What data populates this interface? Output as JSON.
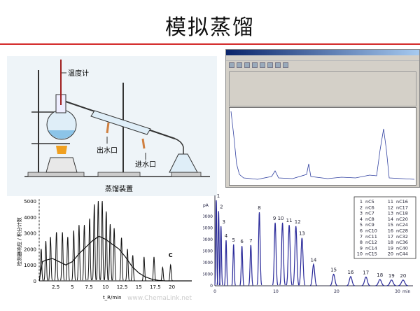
{
  "title": "模拟蒸馏",
  "apparatus": {
    "thermometer": "温度计",
    "water_out": "出水口",
    "water_in": "进水口",
    "caption": "蒸馏装置"
  },
  "watermark": "www.ChemaLink.net",
  "colors": {
    "rule": "#d42a2a",
    "peak_blue": "#2a2a9a",
    "trace": "#111111"
  },
  "chart_data": [
    {
      "type": "line",
      "ylabel": "检测器响应 / 积分计数",
      "xlabel": "t_R/min",
      "xticks": [
        "2.5",
        "5",
        "7.5",
        "10",
        "12.5",
        "15",
        "17.5",
        "20"
      ],
      "yticks": [
        "0",
        "1000",
        "2000",
        "3000",
        "4000",
        "5000"
      ],
      "xlim": [
        0,
        23
      ],
      "ylim": [
        0,
        5000
      ],
      "annotation": "C",
      "peaks": {
        "t": [
          0.3,
          1.0,
          1.7,
          2.6,
          3.5,
          4.3,
          5.2,
          6.0,
          6.8,
          7.6,
          8.3,
          8.9,
          9.5,
          10.1,
          10.7,
          11.3,
          12.4,
          13.3,
          14.1,
          15.8,
          17.3,
          18.6,
          19.8
        ],
        "y": [
          2000,
          2500,
          2750,
          3050,
          3050,
          2750,
          3150,
          3500,
          3500,
          3900,
          4800,
          5000,
          5000,
          4350,
          3550,
          3300,
          2700,
          2000,
          1600,
          1500,
          1500,
          850,
          1000
        ]
      },
      "envelope": {
        "t": [
          0,
          0.5,
          1,
          2,
          3,
          4,
          5,
          6,
          7,
          8,
          9,
          10,
          11,
          12,
          13,
          14,
          15,
          16,
          17,
          18,
          19,
          20,
          23
        ],
        "y": [
          0,
          1200,
          1300,
          1400,
          1200,
          1000,
          1200,
          1700,
          2100,
          2500,
          2800,
          2600,
          2300,
          2000,
          1500,
          900,
          500,
          250,
          100,
          30,
          0,
          0,
          0
        ]
      }
    },
    {
      "type": "line",
      "ylabel": "pA",
      "xlabel": "min",
      "xticks": [
        "0",
        "10",
        "20",
        "30"
      ],
      "yticks": [
        "0",
        "5000",
        "10000",
        "15000",
        "20000",
        "25000",
        "30000"
      ],
      "xlim": [
        0,
        33
      ],
      "ylim": [
        0,
        37000
      ],
      "peaks": [
        {
          "n": "1",
          "t": 0.23,
          "y": 37000
        },
        {
          "n": "2",
          "t": 0.61,
          "y": 32300
        },
        {
          "n": "3",
          "t": 1.0,
          "y": 25800
        },
        {
          "n": "4",
          "t": 1.84,
          "y": 19700
        },
        {
          "n": "5",
          "t": 3.07,
          "y": 17900
        },
        {
          "n": "6",
          "t": 4.44,
          "y": 17200
        },
        {
          "n": "7",
          "t": 5.9,
          "y": 17600
        },
        {
          "n": "8",
          "t": 7.3,
          "y": 31800
        },
        {
          "n": "9",
          "t": 9.9,
          "y": 27300
        },
        {
          "n": "10",
          "t": 11.1,
          "y": 27300
        },
        {
          "n": "11",
          "t": 12.2,
          "y": 26300
        },
        {
          "n": "12",
          "t": 13.3,
          "y": 25800
        },
        {
          "n": "13",
          "t": 14.3,
          "y": 20700
        },
        {
          "n": "14",
          "t": 16.2,
          "y": 9300
        },
        {
          "n": "15",
          "t": 19.5,
          "y": 5000
        },
        {
          "n": "16",
          "t": 22.3,
          "y": 4000
        },
        {
          "n": "17",
          "t": 24.8,
          "y": 3800
        },
        {
          "n": "18",
          "t": 27.1,
          "y": 2700
        },
        {
          "n": "19",
          "t": 29.0,
          "y": 2500
        },
        {
          "n": "20",
          "t": 30.9,
          "y": 2500
        }
      ],
      "legend": [
        [
          "1",
          "nC5"
        ],
        [
          "2",
          "nC6"
        ],
        [
          "3",
          "nC7"
        ],
        [
          "4",
          "nC8"
        ],
        [
          "5",
          "nC9"
        ],
        [
          "6",
          "nC10"
        ],
        [
          "7",
          "nC11"
        ],
        [
          "8",
          "nC12"
        ],
        [
          "9",
          "nC14"
        ],
        [
          "10",
          "nC15"
        ],
        [
          "11",
          "nC16"
        ],
        [
          "12",
          "nC17"
        ],
        [
          "13",
          "nC18"
        ],
        [
          "14",
          "nC20"
        ],
        [
          "15",
          "nC24"
        ],
        [
          "16",
          "nC28"
        ],
        [
          "17",
          "nC32"
        ],
        [
          "18",
          "nC36"
        ],
        [
          "19",
          "nC40"
        ],
        [
          "20",
          "nC44"
        ]
      ],
      "legend_placement": "top-right"
    }
  ]
}
